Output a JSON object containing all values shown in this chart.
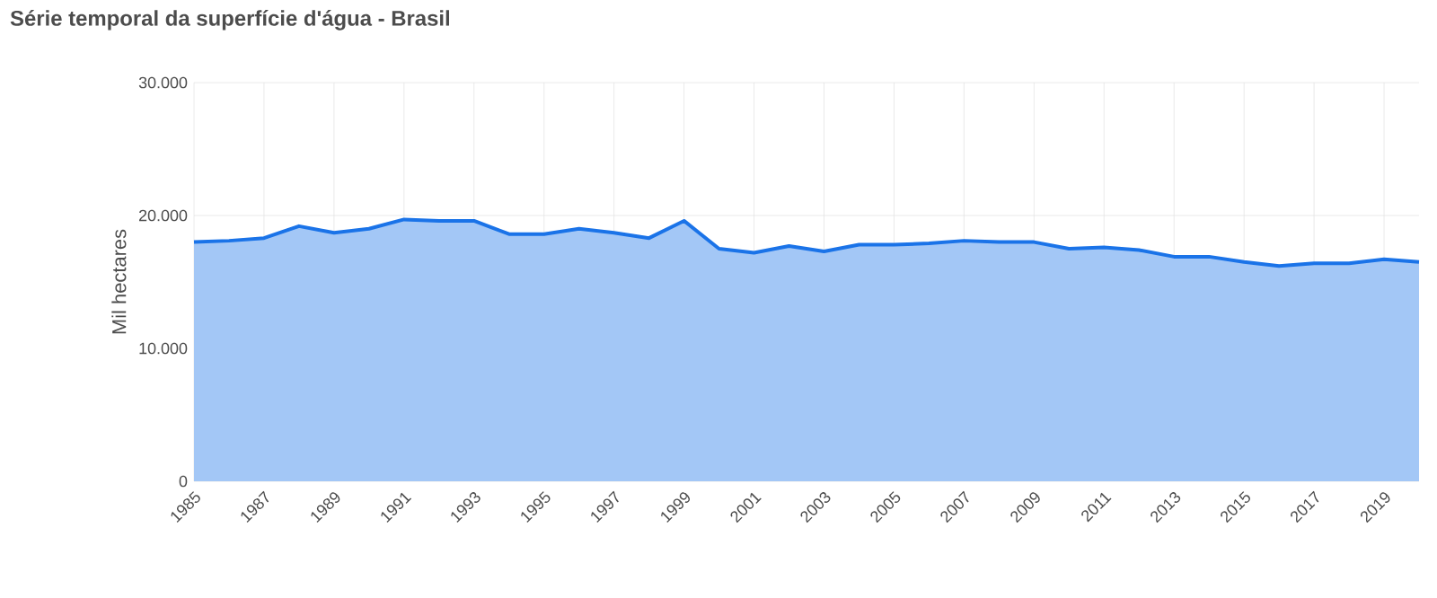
{
  "chart_data": {
    "type": "area",
    "title": "Série temporal da superfície d'água - Brasil",
    "ylabel": "Mil hectares",
    "x": [
      1985,
      1986,
      1987,
      1988,
      1989,
      1990,
      1991,
      1992,
      1993,
      1994,
      1995,
      1996,
      1997,
      1998,
      1999,
      2000,
      2001,
      2002,
      2003,
      2004,
      2005,
      2006,
      2007,
      2008,
      2009,
      2010,
      2011,
      2012,
      2013,
      2014,
      2015,
      2016,
      2017,
      2018,
      2019,
      2020
    ],
    "values": [
      18000,
      18100,
      18300,
      19200,
      18700,
      19000,
      19700,
      19600,
      19600,
      18600,
      18600,
      19000,
      18700,
      18300,
      19600,
      17500,
      17200,
      17700,
      17300,
      17800,
      17800,
      17900,
      18100,
      18000,
      18000,
      17500,
      17600,
      17400,
      16900,
      16900,
      16500,
      16200,
      16400,
      16400,
      16700,
      16500
    ],
    "color": "#1a73e8",
    "xlim": [
      1985,
      2020
    ],
    "ylim": [
      0,
      30000
    ],
    "xticks": [
      1985,
      1987,
      1989,
      1991,
      1993,
      1995,
      1997,
      1999,
      2001,
      2003,
      2005,
      2007,
      2009,
      2011,
      2013,
      2015,
      2017,
      2019
    ],
    "yticks": [
      {
        "value": 0,
        "label": "0"
      },
      {
        "value": 10000,
        "label": "10.000"
      },
      {
        "value": 20000,
        "label": "20.000"
      },
      {
        "value": 30000,
        "label": "30.000"
      }
    ],
    "grid": true,
    "marker": "none",
    "line_style": "solid"
  }
}
